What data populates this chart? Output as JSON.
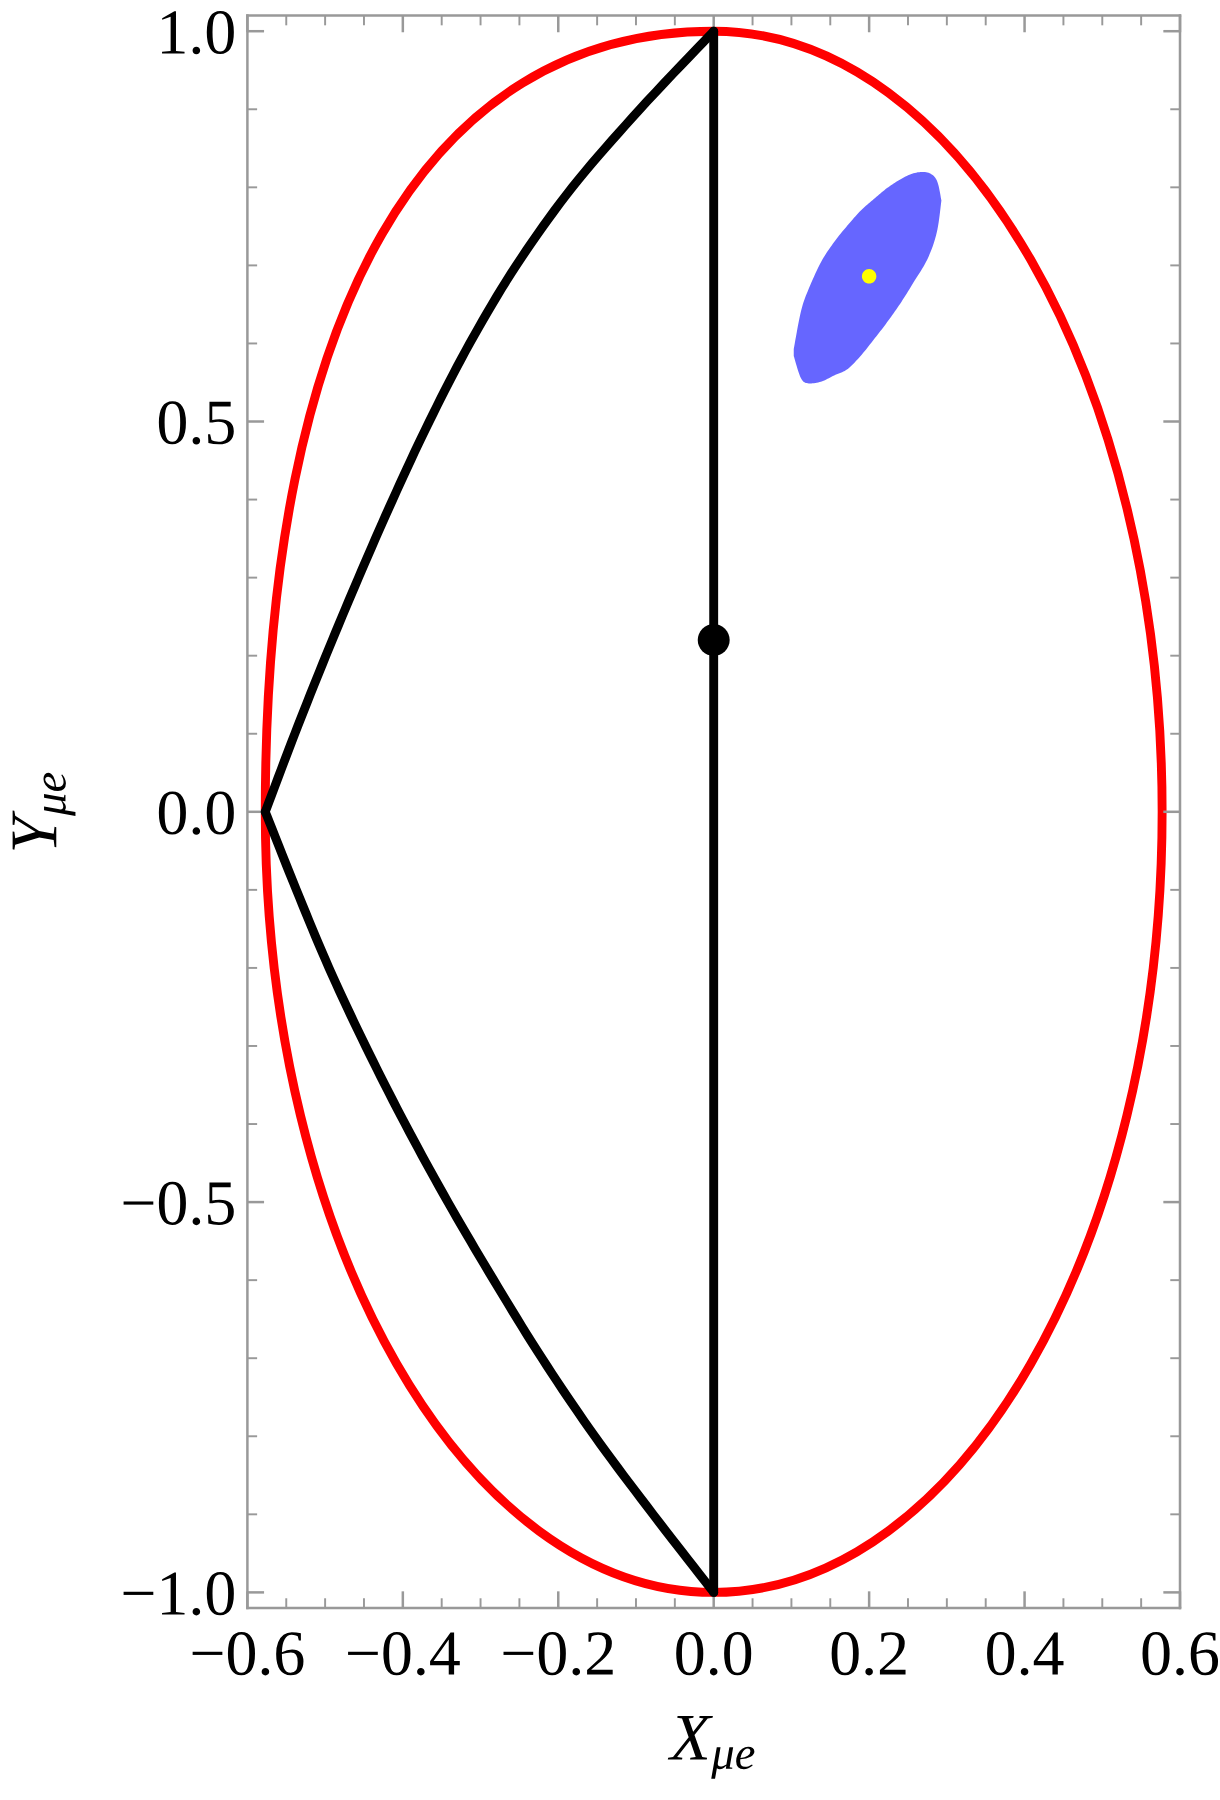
{
  "chart_data": {
    "type": "line",
    "xlabel": "X$_{μe}$",
    "ylabel": "Y$_{μe}$",
    "xlim": [
      -0.6,
      0.6
    ],
    "ylim": [
      -1.02,
      1.02
    ],
    "xticks": [
      {
        "value": -0.6,
        "label": "−0.6"
      },
      {
        "value": -0.55,
        "label": null
      },
      {
        "value": -0.5,
        "label": null
      },
      {
        "value": -0.45,
        "label": null
      },
      {
        "value": -0.4,
        "label": "−0.4"
      },
      {
        "value": -0.35,
        "label": null
      },
      {
        "value": -0.3,
        "label": null
      },
      {
        "value": -0.25,
        "label": null
      },
      {
        "value": -0.2,
        "label": "−0.2"
      },
      {
        "value": -0.15,
        "label": null
      },
      {
        "value": -0.1,
        "label": null
      },
      {
        "value": -0.05,
        "label": null
      },
      {
        "value": 0,
        "label": "0.0"
      },
      {
        "value": 0.05,
        "label": null
      },
      {
        "value": 0.1,
        "label": null
      },
      {
        "value": 0.15,
        "label": null
      },
      {
        "value": 0.2,
        "label": "0.2"
      },
      {
        "value": 0.25,
        "label": null
      },
      {
        "value": 0.3,
        "label": null
      },
      {
        "value": 0.35,
        "label": null
      },
      {
        "value": 0.4,
        "label": "0.4"
      },
      {
        "value": 0.45,
        "label": null
      },
      {
        "value": 0.5,
        "label": null
      },
      {
        "value": 0.55,
        "label": null
      },
      {
        "value": 0.6,
        "label": "0.6"
      }
    ],
    "yticks": [
      {
        "value": -1,
        "label": "−1.0"
      },
      {
        "value": -0.9,
        "label": null
      },
      {
        "value": -0.8,
        "label": null
      },
      {
        "value": -0.7,
        "label": null
      },
      {
        "value": -0.6,
        "label": null
      },
      {
        "value": -0.5,
        "label": "−0.5"
      },
      {
        "value": -0.4,
        "label": null
      },
      {
        "value": -0.3,
        "label": null
      },
      {
        "value": -0.2,
        "label": null
      },
      {
        "value": -0.1,
        "label": null
      },
      {
        "value": 0,
        "label": "0.0"
      },
      {
        "value": 0.1,
        "label": null
      },
      {
        "value": 0.2,
        "label": null
      },
      {
        "value": 0.3,
        "label": null
      },
      {
        "value": 0.4,
        "label": null
      },
      {
        "value": 0.5,
        "label": "0.5"
      },
      {
        "value": 0.6,
        "label": null
      },
      {
        "value": 0.7,
        "label": null
      },
      {
        "value": 0.8,
        "label": null
      },
      {
        "value": 0.9,
        "label": null
      },
      {
        "value": 1,
        "label": "1.0"
      }
    ],
    "series": [
      {
        "color": "#6666ff",
        "x": [
          0.103,
          0.112,
          0.121,
          0.138,
          0.155,
          0.172,
          0.189,
          0.206,
          0.223,
          0.24,
          0.257,
          0.275,
          0.287,
          0.293
        ],
        "values": [
          null,
          null,
          null,
          null,
          null,
          null,
          null,
          null,
          null,
          null,
          null,
          null,
          null,
          null
        ],
        "lower": [
          0.584,
          0.556,
          0.549,
          0.551,
          0.559,
          0.567,
          0.584,
          0.605,
          0.627,
          0.651,
          0.678,
          0.708,
          0.742,
          0.783
        ],
        "upper": [
          0.593,
          0.64,
          0.667,
          0.704,
          0.73,
          0.751,
          0.77,
          0.785,
          0.799,
          0.81,
          0.818,
          0.819,
          0.809,
          0.783
        ]
      },
      {
        "color": "#000000",
        "x": [
          -0.577,
          -0.539,
          -0.499,
          -0.457,
          -0.413,
          -0.366,
          -0.314,
          -0.254,
          -0.182,
          -0.095,
          0
        ],
        "values": [
          0,
          0.1,
          0.2,
          0.3,
          0.4,
          0.5,
          0.6,
          0.7,
          0.8,
          0.9,
          1
        ]
      },
      {
        "color": "#000000",
        "x": [
          -0.577,
          -0.537,
          -0.495,
          -0.448,
          -0.397,
          -0.342,
          -0.283,
          -0.221,
          -0.153,
          -0.078,
          0
        ],
        "values": [
          0,
          -0.1,
          -0.2,
          -0.3,
          -0.4,
          -0.5,
          -0.6,
          -0.7,
          -0.8,
          -0.9,
          -1
        ]
      },
      {
        "color": "#000000",
        "x": [
          0,
          0,
          0,
          0,
          0
        ],
        "values": [
          -1,
          -0.5,
          0,
          0.5,
          1
        ]
      },
      {
        "type": "scatter",
        "color": "#000000",
        "marker": "circle",
        "x": [
          0
        ],
        "values": [
          0.22
        ]
      },
      {
        "type": "scatter",
        "color": "#ffff00",
        "marker": "circle",
        "x": [
          0.2
        ],
        "values": [
          0.686
        ]
      }
    ]
  }
}
